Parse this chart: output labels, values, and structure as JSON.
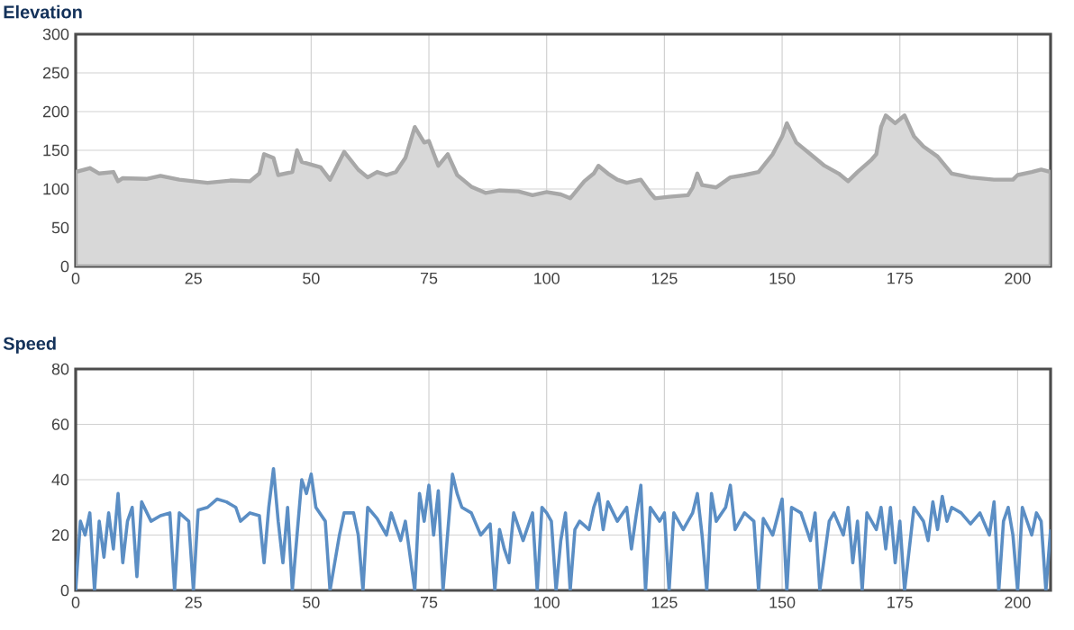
{
  "chart_data": [
    {
      "type": "area",
      "title": "Elevation",
      "color": "#d8d8d8",
      "grid": true,
      "xlim": [
        0,
        207
      ],
      "ylim": [
        0,
        300
      ],
      "xticks": [
        0,
        25,
        50,
        75,
        100,
        125,
        150,
        175,
        200
      ],
      "yticks": [
        0,
        50,
        100,
        150,
        200,
        250,
        300
      ],
      "x": [
        0,
        3,
        5,
        8,
        9,
        10,
        15,
        18,
        22,
        28,
        33,
        37,
        39,
        40,
        42,
        43,
        46,
        47,
        48,
        52,
        54,
        57,
        60,
        62,
        64,
        66,
        68,
        70,
        72,
        74,
        75,
        77,
        79,
        81,
        84,
        87,
        90,
        94,
        97,
        100,
        103,
        105,
        108,
        110,
        111,
        113,
        115,
        117,
        120,
        122,
        123,
        126,
        130,
        131,
        132,
        133,
        136,
        139,
        142,
        145,
        148,
        150,
        151,
        153,
        156,
        159,
        162,
        164,
        166,
        169,
        170,
        171,
        172,
        174,
        176,
        178,
        180,
        183,
        186,
        190,
        195,
        199,
        200,
        203,
        205,
        207
      ],
      "values": [
        122,
        127,
        120,
        122,
        110,
        114,
        113,
        117,
        112,
        108,
        111,
        110,
        120,
        145,
        140,
        118,
        122,
        150,
        135,
        128,
        112,
        148,
        125,
        115,
        122,
        118,
        122,
        140,
        180,
        160,
        162,
        130,
        145,
        118,
        103,
        95,
        98,
        97,
        92,
        96,
        93,
        88,
        110,
        120,
        130,
        120,
        112,
        108,
        112,
        95,
        88,
        90,
        92,
        102,
        120,
        105,
        102,
        115,
        118,
        122,
        145,
        168,
        185,
        160,
        145,
        130,
        120,
        110,
        122,
        138,
        145,
        180,
        195,
        185,
        195,
        168,
        155,
        142,
        120,
        115,
        112,
        112,
        118,
        122,
        125,
        122
      ]
    },
    {
      "type": "line",
      "title": "Speed",
      "color": "#5b8ec4",
      "grid": true,
      "xlim": [
        0,
        207
      ],
      "ylim": [
        0,
        80
      ],
      "xticks": [
        0,
        25,
        50,
        75,
        100,
        125,
        150,
        175,
        200
      ],
      "yticks": [
        0,
        20,
        40,
        60,
        80
      ],
      "x": [
        0,
        1,
        2,
        3,
        4,
        5,
        6,
        7,
        8,
        9,
        10,
        11,
        12,
        13,
        14,
        16,
        18,
        20,
        21,
        22,
        24,
        25,
        26,
        28,
        30,
        32,
        34,
        35,
        37,
        39,
        40,
        41,
        42,
        43,
        44,
        45,
        46,
        47,
        48,
        49,
        50,
        51,
        53,
        54,
        56,
        57,
        59,
        60,
        61,
        62,
        64,
        66,
        67,
        69,
        70,
        72,
        73,
        74,
        75,
        76,
        77,
        78,
        80,
        81,
        82,
        84,
        86,
        88,
        89,
        90,
        91,
        92,
        93,
        95,
        97,
        98,
        99,
        100,
        101,
        102,
        103,
        104,
        105,
        106,
        107,
        109,
        110,
        111,
        112,
        113,
        115,
        117,
        118,
        119,
        120,
        121,
        122,
        124,
        125,
        126,
        127,
        129,
        131,
        132,
        133,
        134,
        135,
        136,
        138,
        139,
        140,
        142,
        144,
        145,
        146,
        148,
        150,
        151,
        152,
        154,
        156,
        157,
        158,
        160,
        161,
        163,
        164,
        165,
        166,
        167,
        168,
        170,
        171,
        172,
        173,
        174,
        175,
        176,
        178,
        180,
        181,
        182,
        183,
        184,
        185,
        186,
        188,
        190,
        192,
        194,
        195,
        196,
        197,
        198,
        199,
        200,
        201,
        203,
        204,
        205,
        206,
        207
      ],
      "values": [
        0,
        25,
        20,
        28,
        0,
        25,
        12,
        28,
        15,
        35,
        10,
        25,
        30,
        5,
        32,
        25,
        27,
        28,
        0,
        28,
        25,
        0,
        29,
        30,
        33,
        32,
        30,
        25,
        28,
        27,
        10,
        30,
        44,
        25,
        10,
        30,
        0,
        20,
        40,
        35,
        42,
        30,
        25,
        0,
        20,
        28,
        28,
        20,
        0,
        30,
        26,
        20,
        28,
        18,
        25,
        0,
        35,
        25,
        38,
        20,
        36,
        0,
        42,
        35,
        30,
        28,
        20,
        24,
        0,
        22,
        15,
        10,
        28,
        18,
        28,
        0,
        30,
        28,
        25,
        0,
        18,
        28,
        0,
        22,
        25,
        22,
        30,
        35,
        22,
        32,
        25,
        30,
        15,
        27,
        38,
        0,
        30,
        25,
        28,
        0,
        28,
        22,
        28,
        35,
        20,
        0,
        35,
        25,
        30,
        38,
        22,
        28,
        25,
        0,
        26,
        20,
        33,
        0,
        30,
        28,
        18,
        28,
        0,
        25,
        28,
        20,
        30,
        10,
        25,
        0,
        28,
        22,
        30,
        15,
        30,
        10,
        25,
        0,
        30,
        25,
        18,
        32,
        22,
        34,
        25,
        30,
        28,
        24,
        28,
        20,
        32,
        0,
        25,
        30,
        20,
        0,
        30,
        20,
        28,
        25,
        0,
        22
      ]
    }
  ]
}
